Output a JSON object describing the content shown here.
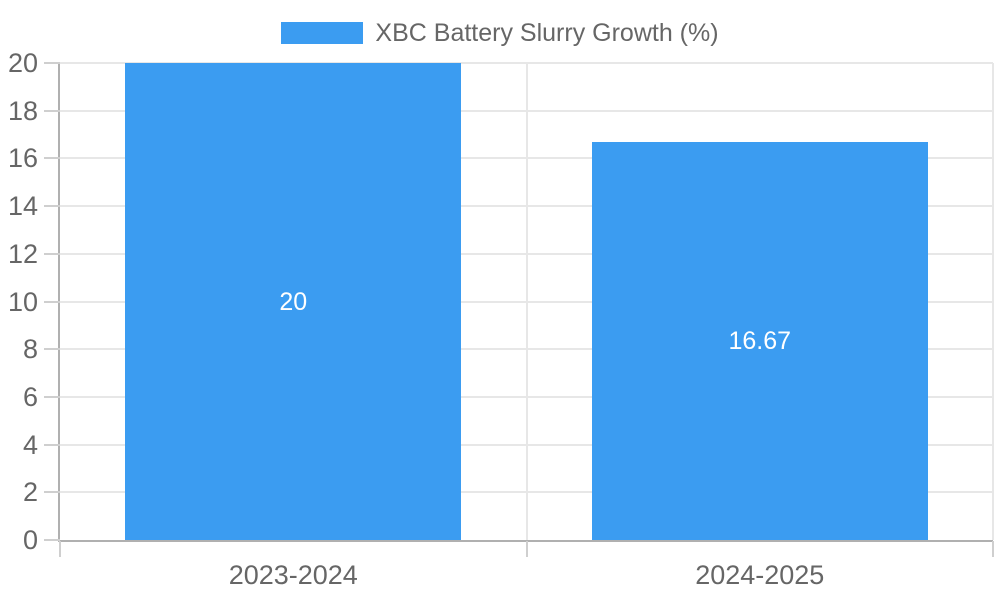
{
  "chart_data": {
    "type": "bar",
    "legend": "XBC Battery Slurry Growth (%)",
    "legend_position": "top",
    "categories": [
      "2023-2024",
      "2024-2025"
    ],
    "series": [
      {
        "name": "XBC Battery Slurry Growth (%)",
        "values": [
          20,
          16.67
        ],
        "value_labels": [
          "20",
          "16.67"
        ]
      }
    ],
    "xlabel": "",
    "ylabel": "",
    "ylim": [
      0,
      20
    ],
    "ytick_step": 2,
    "grid": true,
    "bar_width_fraction": 0.72,
    "value_label_position": "center"
  },
  "colors": {
    "bar": "#3B9CF1",
    "grid": "#e7e7e7",
    "axis": "#b0b0b0",
    "tick": "#cfcfcf",
    "text": "#666666",
    "value_label": "#ffffff",
    "background": "#ffffff"
  }
}
